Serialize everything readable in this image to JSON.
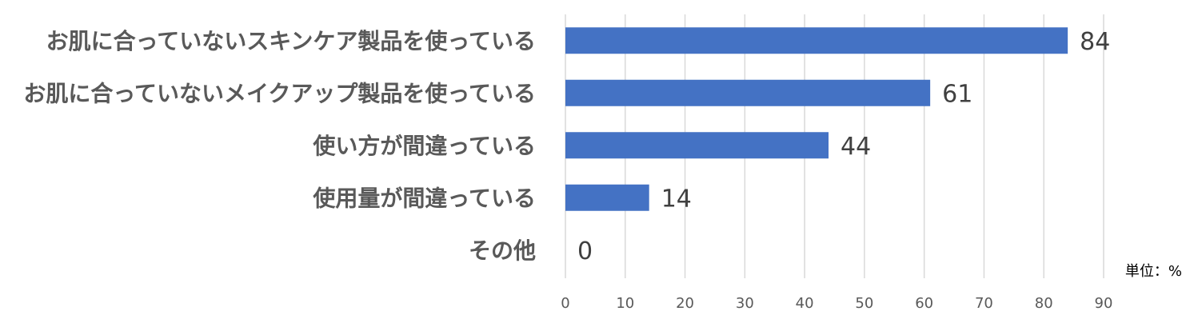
{
  "chart_data": {
    "type": "bar",
    "orientation": "horizontal",
    "categories": [
      "お肌に合っていないスキンケア製品を使っている",
      "お肌に合っていないメイクアップ製品を使っている",
      "使い方が間違っている",
      "使用量が間違っている",
      "その他"
    ],
    "values": [
      84,
      61,
      44,
      14,
      0
    ],
    "xlim": [
      0,
      90
    ],
    "xticks": [
      0,
      10,
      20,
      30,
      40,
      50,
      60,
      70,
      80,
      90
    ],
    "unit_label": "単位：%",
    "bar_color": "#4472C4",
    "grid": true
  }
}
